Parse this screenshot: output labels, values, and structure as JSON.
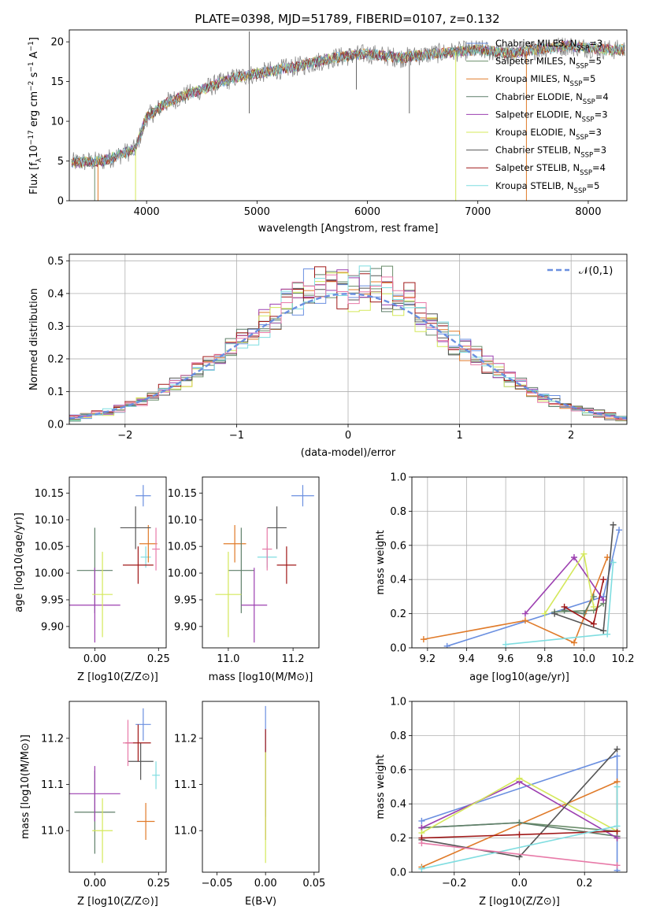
{
  "figure": {
    "title": "PLATE=0398, MJD=51789, FIBERID=0107, z=0.132",
    "series": [
      {
        "name": "Chabrier MILES, N_SSP=3",
        "sub": "SSP",
        "base": "Chabrier MILES, N",
        "rest": "=3",
        "color": "#6a8fe0"
      },
      {
        "name": "Salpeter MILES, N_SSP=5",
        "sub": "SSP",
        "base": "Salpeter MILES, N",
        "rest": "=5",
        "color": "#6b8e6b"
      },
      {
        "name": "Kroupa MILES, N_SSP=5",
        "sub": "SSP",
        "base": "Kroupa MILES, N",
        "rest": "=5",
        "color": "#e07b2a"
      },
      {
        "name": "Chabrier ELODIE, N_SSP=4",
        "sub": "SSP",
        "base": "Chabrier ELODIE, N",
        "rest": "=4",
        "color": "#5f7f6a"
      },
      {
        "name": "Salpeter ELODIE, N_SSP=3",
        "sub": "SSP",
        "base": "Salpeter ELODIE, N",
        "rest": "=3",
        "color": "#9c3fb0"
      },
      {
        "name": "Kroupa ELODIE, N_SSP=3",
        "sub": "SSP",
        "base": "Kroupa ELODIE, N",
        "rest": "=3",
        "color": "#d4e85a"
      },
      {
        "name": "Chabrier STELIB, N_SSP=3",
        "sub": "SSP",
        "base": "Chabrier STELIB, N",
        "rest": "=3",
        "color": "#555555"
      },
      {
        "name": "Salpeter STELIB, N_SSP=4",
        "sub": "SSP",
        "base": "Salpeter STELIB, N",
        "rest": "=4",
        "color": "#a01818"
      },
      {
        "name": "Kroupa STELIB, N_SSP=5",
        "sub": "SSP",
        "base": "Kroupa STELIB, N",
        "rest": "=5",
        "color": "#7fdde0"
      }
    ],
    "extra_hist_color": "#e87aa8"
  },
  "chart_data": [
    {
      "id": "spectrum",
      "type": "line",
      "xlabel": "wavelength [Angstrom, rest frame]",
      "ylabel": "Flux [f_λ 10^-17 erg cm^-2 s^-1 A^-1]",
      "xlim": [
        3300,
        8350
      ],
      "ylim": [
        0,
        21.5
      ],
      "xticks": [
        4000,
        5000,
        6000,
        7000,
        8000
      ],
      "yticks": [
        0,
        5,
        10,
        15,
        20
      ],
      "grid": false,
      "legend": "right",
      "continuum_knots": [
        [
          3320,
          4.8
        ],
        [
          3600,
          5.0
        ],
        [
          3900,
          6.5
        ],
        [
          4000,
          10.5
        ],
        [
          4200,
          12.5
        ],
        [
          4500,
          14.0
        ],
        [
          4800,
          15.5
        ],
        [
          5000,
          16.0
        ],
        [
          5200,
          16.5
        ],
        [
          5400,
          17.0
        ],
        [
          5700,
          18.0
        ],
        [
          6000,
          18.5
        ],
        [
          6300,
          18.0
        ],
        [
          6600,
          18.5
        ],
        [
          7000,
          19.0
        ],
        [
          7300,
          18.5
        ],
        [
          7500,
          19.0
        ],
        [
          7800,
          19.5
        ],
        [
          8200,
          19.0
        ]
      ]
    },
    {
      "id": "residuals",
      "type": "histogram",
      "xlabel": "(data-model)/error",
      "ylabel": "Normed distribution",
      "xlim": [
        -2.5,
        2.5
      ],
      "ylim": [
        0,
        0.52
      ],
      "xticks": [
        -2,
        -1,
        0,
        1,
        2
      ],
      "yticks": [
        0.0,
        0.1,
        0.2,
        0.3,
        0.4,
        0.5
      ],
      "grid": true,
      "legend": "top-right",
      "reference_label": "𝒩(0,1)",
      "bin_width": 0.1
    },
    {
      "id": "age-vs-Z",
      "type": "errorbar",
      "xlabel": "Z [log10(Z/Z⊙)]",
      "ylabel": "age [log10(age/yr)]",
      "xlim": [
        -0.1,
        0.28
      ],
      "ylim": [
        9.86,
        10.18
      ],
      "xticks": [
        0.0,
        0.25
      ],
      "yticks": [
        9.9,
        9.95,
        10.0,
        10.05,
        10.1,
        10.15
      ],
      "points": [
        {
          "x": 0.19,
          "y": 10.145,
          "xerr": 0.03,
          "yerr": 0.02
        },
        {
          "x": 0.2,
          "y": 10.03,
          "xerr": 0.02,
          "yerr": 0.02
        },
        {
          "x": 0.21,
          "y": 10.055,
          "xerr": 0.035,
          "yerr": 0.035
        },
        {
          "x": 0.0,
          "y": 10.005,
          "xerr": 0.07,
          "yerr": 0.08
        },
        {
          "x": 0.0,
          "y": 9.94,
          "xerr": 0.1,
          "yerr": 0.07
        },
        {
          "x": 0.03,
          "y": 9.96,
          "xerr": 0.04,
          "yerr": 0.08
        },
        {
          "x": 0.16,
          "y": 10.085,
          "xerr": 0.06,
          "yerr": 0.04
        },
        {
          "x": 0.17,
          "y": 10.015,
          "xerr": 0.06,
          "yerr": 0.035
        },
        {
          "x": 0.24,
          "y": 10.045,
          "xerr": 0.015,
          "yerr": 0.04
        }
      ]
    },
    {
      "id": "age-vs-mass",
      "type": "errorbar",
      "xlabel": "mass [log10(M/M⊙)]",
      "ylabel": "",
      "xlim": [
        10.92,
        11.28
      ],
      "ylim": [
        9.86,
        10.18
      ],
      "xticks": [
        11.0,
        11.2
      ],
      "yticks": [
        9.9,
        9.95,
        10.0,
        10.05,
        10.1,
        10.15
      ],
      "points": [
        {
          "x": 11.23,
          "y": 10.145,
          "xerr": 0.035,
          "yerr": 0.02
        },
        {
          "x": 11.12,
          "y": 10.03,
          "xerr": 0.03,
          "yerr": 0.02
        },
        {
          "x": 11.02,
          "y": 10.055,
          "xerr": 0.035,
          "yerr": 0.035
        },
        {
          "x": 11.04,
          "y": 10.005,
          "xerr": 0.04,
          "yerr": 0.08
        },
        {
          "x": 11.08,
          "y": 9.94,
          "xerr": 0.04,
          "yerr": 0.07
        },
        {
          "x": 11.0,
          "y": 9.96,
          "xerr": 0.04,
          "yerr": 0.08
        },
        {
          "x": 11.15,
          "y": 10.085,
          "xerr": 0.03,
          "yerr": 0.04
        },
        {
          "x": 11.18,
          "y": 10.015,
          "xerr": 0.03,
          "yerr": 0.035
        },
        {
          "x": 11.12,
          "y": 10.045,
          "xerr": 0.015,
          "yerr": 0.04
        }
      ]
    },
    {
      "id": "mass-weight-vs-age",
      "type": "line",
      "xlabel": "age [log10(age/yr)]",
      "ylabel": "mass weight",
      "xlim": [
        9.12,
        10.22
      ],
      "ylim": [
        0.0,
        1.0
      ],
      "xticks": [
        9.2,
        9.4,
        9.6,
        9.8,
        10.0,
        10.2
      ],
      "yticks": [
        0.0,
        0.2,
        0.4,
        0.6,
        0.8,
        1.0
      ],
      "grid": true,
      "series": [
        {
          "x": [
            9.3,
            10.1,
            10.18
          ],
          "y": [
            0.01,
            0.3,
            0.69
          ]
        },
        {
          "x": [
            9.85,
            10.05,
            10.1
          ],
          "y": [
            0.21,
            0.22,
            0.26
          ]
        },
        {
          "x": [
            9.18,
            9.7,
            9.95,
            10.12
          ],
          "y": [
            0.05,
            0.16,
            0.03,
            0.53
          ]
        },
        {
          "x": [
            9.9,
            10.0,
            10.05
          ],
          "y": [
            0.22,
            0.2,
            0.3
          ]
        },
        {
          "x": [
            9.7,
            9.95,
            10.1
          ],
          "y": [
            0.2,
            0.53,
            0.28
          ]
        },
        {
          "x": [
            9.8,
            10.0,
            10.05
          ],
          "y": [
            0.2,
            0.55,
            0.24
          ]
        },
        {
          "x": [
            9.85,
            10.1,
            10.15
          ],
          "y": [
            0.2,
            0.1,
            0.72
          ]
        },
        {
          "x": [
            9.9,
            10.05,
            10.1
          ],
          "y": [
            0.24,
            0.14,
            0.4
          ]
        },
        {
          "x": [
            9.6,
            10.12,
            10.15
          ],
          "y": [
            0.02,
            0.08,
            0.5
          ]
        }
      ]
    },
    {
      "id": "mass-vs-Z",
      "type": "errorbar",
      "xlabel": "Z [log10(Z/Z⊙)]",
      "ylabel": "mass [log10(M/M⊙)]",
      "xlim": [
        -0.1,
        0.28
      ],
      "ylim": [
        10.91,
        11.28
      ],
      "xticks": [
        0.0,
        0.25
      ],
      "yticks": [
        11.0,
        11.1,
        11.2
      ],
      "points": [
        {
          "x": 0.19,
          "y": 11.23,
          "xerr": 0.03,
          "yerr": 0.035
        },
        {
          "x": 0.24,
          "y": 11.12,
          "xerr": 0.015,
          "yerr": 0.03
        },
        {
          "x": 0.2,
          "y": 11.02,
          "xerr": 0.035,
          "yerr": 0.04
        },
        {
          "x": 0.0,
          "y": 11.04,
          "xerr": 0.08,
          "yerr": 0.09
        },
        {
          "x": 0.0,
          "y": 11.08,
          "xerr": 0.1,
          "yerr": 0.06
        },
        {
          "x": 0.03,
          "y": 11.0,
          "xerr": 0.04,
          "yerr": 0.07
        },
        {
          "x": 0.18,
          "y": 11.15,
          "xerr": 0.05,
          "yerr": 0.04
        },
        {
          "x": 0.17,
          "y": 11.19,
          "xerr": 0.05,
          "yerr": 0.04
        },
        {
          "x": 0.13,
          "y": 11.19,
          "xerr": 0.02,
          "yerr": 0.05
        }
      ]
    },
    {
      "id": "mass-vs-EBV",
      "type": "errorbar",
      "xlabel": "E(B-V)",
      "ylabel": "",
      "xlim": [
        -0.065,
        0.055
      ],
      "ylim": [
        10.91,
        11.28
      ],
      "xticks": [
        -0.05,
        0.0,
        0.05
      ],
      "yticks": [
        11.0,
        11.1,
        11.2
      ],
      "points": [
        {
          "x": 0.0,
          "y": 11.15,
          "xerr": 0.0,
          "yerr": 0.12
        },
        {
          "x": 0.0,
          "y": 11.1,
          "xerr": 0.0,
          "yerr": 0.12
        },
        {
          "x": 0.0,
          "y": 11.05,
          "xerr": 0.0,
          "yerr": 0.12
        }
      ]
    },
    {
      "id": "mass-weight-vs-Z",
      "type": "line",
      "xlabel": "Z [log10(Z/Z⊙)]",
      "ylabel": "mass weight",
      "xlim": [
        -0.33,
        0.33
      ],
      "ylim": [
        0.0,
        1.0
      ],
      "xticks": [
        -0.2,
        0.0,
        0.2
      ],
      "yticks": [
        0.0,
        0.2,
        0.4,
        0.6,
        0.8,
        1.0
      ],
      "grid": true,
      "series": [
        {
          "x": [
            -0.3,
            0.3,
            0.3
          ],
          "y": [
            0.3,
            0.68,
            0.01
          ]
        },
        {
          "x": [
            -0.3,
            0.0,
            0.3
          ],
          "y": [
            0.26,
            0.29,
            0.24
          ]
        },
        {
          "x": [
            -0.3,
            0.3,
            0.3
          ],
          "y": [
            0.03,
            0.53,
            0.2
          ]
        },
        {
          "x": [
            -0.3,
            0.0,
            0.3
          ],
          "y": [
            0.26,
            0.29,
            0.21
          ]
        },
        {
          "x": [
            -0.3,
            0.0,
            0.3
          ],
          "y": [
            0.26,
            0.53,
            0.2
          ]
        },
        {
          "x": [
            -0.3,
            0.0,
            0.3
          ],
          "y": [
            0.23,
            0.55,
            0.24
          ]
        },
        {
          "x": [
            -0.3,
            0.0,
            0.3
          ],
          "y": [
            0.19,
            0.09,
            0.72
          ]
        },
        {
          "x": [
            -0.3,
            0.0,
            0.3
          ],
          "y": [
            0.2,
            0.22,
            0.24
          ]
        },
        {
          "x": [
            -0.3,
            0.3,
            0.3
          ],
          "y": [
            0.02,
            0.27,
            0.5
          ]
        }
      ],
      "extra_series": {
        "x": [
          -0.3,
          0.3
        ],
        "y": [
          0.17,
          0.04
        ]
      }
    }
  ]
}
